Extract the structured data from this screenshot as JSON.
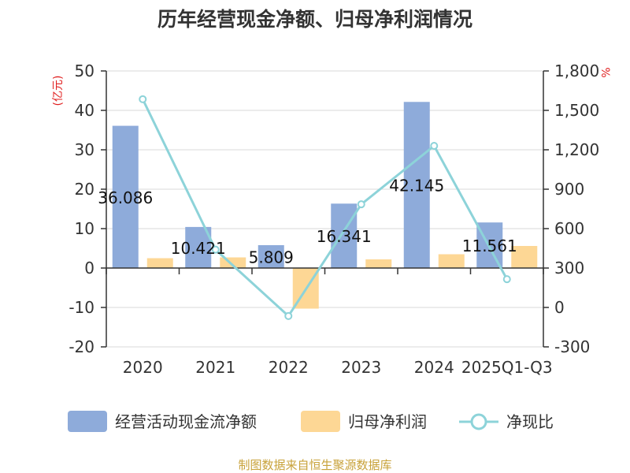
{
  "chart_data": {
    "type": "bar",
    "title": "历年经营现金净额、归母净利润情况",
    "categories": [
      "2020",
      "2021",
      "2022",
      "2023",
      "2024",
      "2025Q1-Q3"
    ],
    "series": [
      {
        "name": "经营活动现金流净额",
        "kind": "bar",
        "axis": "left",
        "color": "#8eabda",
        "values": [
          36.086,
          10.421,
          5.809,
          16.341,
          42.145,
          11.561
        ],
        "labels": [
          "36.086",
          "10.421",
          "5.809",
          "16.341",
          "42.145",
          "11.561"
        ]
      },
      {
        "name": "归母净利润",
        "kind": "bar",
        "axis": "left",
        "color": "#fdd795",
        "values": [
          2.5,
          2.7,
          -10.3,
          2.2,
          3.5,
          5.6
        ]
      },
      {
        "name": "净现比",
        "kind": "line",
        "axis": "right",
        "color": "#8dd3d9",
        "values": [
          1585,
          440,
          -65,
          785,
          1230,
          215
        ]
      }
    ],
    "y_left": {
      "unit": "(亿元)",
      "ylim": [
        -20,
        50
      ],
      "ticks": [
        50,
        40,
        30,
        20,
        10,
        0,
        -10,
        -20
      ],
      "tick_labels": [
        "50",
        "40",
        "30",
        "20",
        "10",
        "0",
        "-10",
        "-20"
      ]
    },
    "y_right": {
      "unit": "%",
      "ylim": [
        -300,
        1800
      ],
      "ticks": [
        1800,
        1500,
        1200,
        900,
        600,
        300,
        0,
        -300
      ],
      "tick_labels": [
        "1,800",
        "1,500",
        "1,200",
        "900",
        "600",
        "300",
        "0",
        "-300"
      ]
    },
    "grid": true,
    "legend_position": "bottom",
    "source": "制图数据来自恒生聚源数据库"
  }
}
